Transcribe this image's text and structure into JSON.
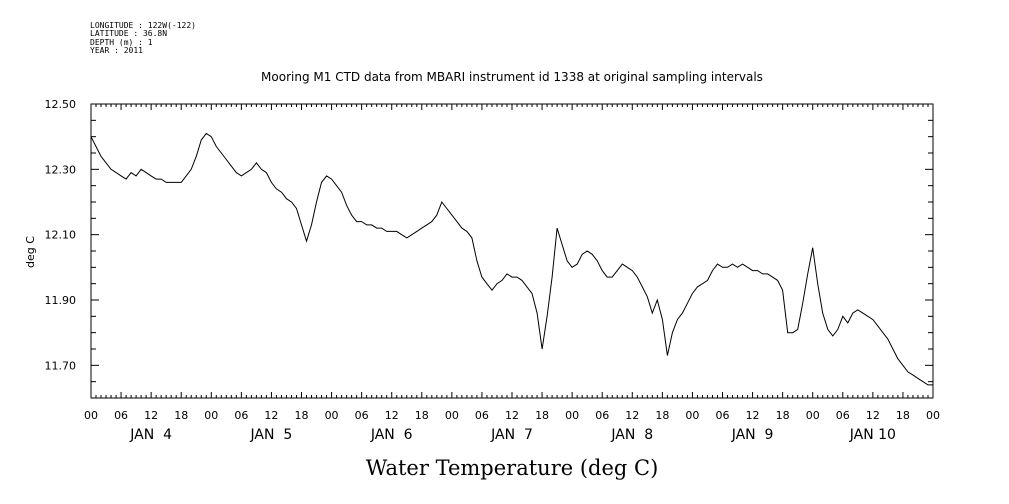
{
  "meta": {
    "longitude": "LONGITUDE : 122W(-122)",
    "latitude": "LATITUDE : 36.8N",
    "depth": "DEPTH (m) : 1",
    "year": "YEAR : 2011"
  },
  "chart_data": {
    "type": "line",
    "title": "Mooring M1 CTD data from MBARI instrument id 1338 at original sampling intervals",
    "xlabel": "Water Temperature (deg C)",
    "ylabel": "deg C",
    "ylim": [
      11.6,
      12.5
    ],
    "yticks": [
      "12.50",
      "12.30",
      "12.10",
      "11.90",
      "11.70"
    ],
    "xlim_hours": [
      0,
      168
    ],
    "xtick_labels": [
      "00",
      "06",
      "12",
      "18",
      "00",
      "06",
      "12",
      "18",
      "00",
      "06",
      "12",
      "18",
      "00",
      "06",
      "12",
      "18",
      "00",
      "06",
      "12",
      "18",
      "00",
      "06",
      "12",
      "18",
      "00",
      "06",
      "12",
      "18",
      "00"
    ],
    "day_labels": [
      "JAN  4",
      "JAN  5",
      "JAN  6",
      "JAN  7",
      "JAN  8",
      "JAN  9",
      "JAN 10"
    ],
    "grid": false,
    "series": [
      {
        "values": [
          [
            0,
            12.4
          ],
          [
            1,
            12.37
          ],
          [
            2,
            12.34
          ],
          [
            3,
            12.32
          ],
          [
            4,
            12.3
          ],
          [
            5,
            12.29
          ],
          [
            6,
            12.28
          ],
          [
            7,
            12.27
          ],
          [
            8,
            12.29
          ],
          [
            9,
            12.28
          ],
          [
            10,
            12.3
          ],
          [
            11,
            12.29
          ],
          [
            12,
            12.28
          ],
          [
            13,
            12.27
          ],
          [
            14,
            12.27
          ],
          [
            15,
            12.26
          ],
          [
            16,
            12.26
          ],
          [
            17,
            12.26
          ],
          [
            18,
            12.26
          ],
          [
            19,
            12.28
          ],
          [
            20,
            12.3
          ],
          [
            21,
            12.34
          ],
          [
            22,
            12.39
          ],
          [
            23,
            12.41
          ],
          [
            24,
            12.4
          ],
          [
            25,
            12.37
          ],
          [
            26,
            12.35
          ],
          [
            27,
            12.33
          ],
          [
            28,
            12.31
          ],
          [
            29,
            12.29
          ],
          [
            30,
            12.28
          ],
          [
            31,
            12.29
          ],
          [
            32,
            12.3
          ],
          [
            33,
            12.32
          ],
          [
            34,
            12.3
          ],
          [
            35,
            12.29
          ],
          [
            36,
            12.26
          ],
          [
            37,
            12.24
          ],
          [
            38,
            12.23
          ],
          [
            39,
            12.21
          ],
          [
            40,
            12.2
          ],
          [
            41,
            12.18
          ],
          [
            42,
            12.13
          ],
          [
            43,
            12.08
          ],
          [
            44,
            12.13
          ],
          [
            45,
            12.2
          ],
          [
            46,
            12.26
          ],
          [
            47,
            12.28
          ],
          [
            48,
            12.27
          ],
          [
            49,
            12.25
          ],
          [
            50,
            12.23
          ],
          [
            51,
            12.19
          ],
          [
            52,
            12.16
          ],
          [
            53,
            12.14
          ],
          [
            54,
            12.14
          ],
          [
            55,
            12.13
          ],
          [
            56,
            12.13
          ],
          [
            57,
            12.12
          ],
          [
            58,
            12.12
          ],
          [
            59,
            12.11
          ],
          [
            60,
            12.11
          ],
          [
            61,
            12.11
          ],
          [
            62,
            12.1
          ],
          [
            63,
            12.09
          ],
          [
            64,
            12.1
          ],
          [
            65,
            12.11
          ],
          [
            66,
            12.12
          ],
          [
            67,
            12.13
          ],
          [
            68,
            12.14
          ],
          [
            69,
            12.16
          ],
          [
            70,
            12.2
          ],
          [
            71,
            12.18
          ],
          [
            72,
            12.16
          ],
          [
            73,
            12.14
          ],
          [
            74,
            12.12
          ],
          [
            75,
            12.11
          ],
          [
            76,
            12.09
          ],
          [
            77,
            12.02
          ],
          [
            78,
            11.97
          ],
          [
            79,
            11.95
          ],
          [
            80,
            11.93
          ],
          [
            81,
            11.95
          ],
          [
            82,
            11.96
          ],
          [
            83,
            11.98
          ],
          [
            84,
            11.97
          ],
          [
            85,
            11.97
          ],
          [
            86,
            11.96
          ],
          [
            87,
            11.94
          ],
          [
            88,
            11.92
          ],
          [
            89,
            11.86
          ],
          [
            90,
            11.75
          ],
          [
            91,
            11.85
          ],
          [
            92,
            11.97
          ],
          [
            93,
            12.12
          ],
          [
            94,
            12.07
          ],
          [
            95,
            12.02
          ],
          [
            96,
            12.0
          ],
          [
            97,
            12.01
          ],
          [
            98,
            12.04
          ],
          [
            99,
            12.05
          ],
          [
            100,
            12.04
          ],
          [
            101,
            12.02
          ],
          [
            102,
            11.99
          ],
          [
            103,
            11.97
          ],
          [
            104,
            11.97
          ],
          [
            105,
            11.99
          ],
          [
            106,
            12.01
          ],
          [
            107,
            12.0
          ],
          [
            108,
            11.99
          ],
          [
            109,
            11.97
          ],
          [
            110,
            11.94
          ],
          [
            111,
            11.91
          ],
          [
            112,
            11.86
          ],
          [
            113,
            11.9
          ],
          [
            114,
            11.84
          ],
          [
            115,
            11.73
          ],
          [
            116,
            11.8
          ],
          [
            117,
            11.84
          ],
          [
            118,
            11.86
          ],
          [
            119,
            11.89
          ],
          [
            120,
            11.92
          ],
          [
            121,
            11.94
          ],
          [
            122,
            11.95
          ],
          [
            123,
            11.96
          ],
          [
            124,
            11.99
          ],
          [
            125,
            12.01
          ],
          [
            126,
            12.0
          ],
          [
            127,
            12.0
          ],
          [
            128,
            12.01
          ],
          [
            129,
            12.0
          ],
          [
            130,
            12.01
          ],
          [
            131,
            12.0
          ],
          [
            132,
            11.99
          ],
          [
            133,
            11.99
          ],
          [
            134,
            11.98
          ],
          [
            135,
            11.98
          ],
          [
            136,
            11.97
          ],
          [
            137,
            11.96
          ],
          [
            138,
            11.93
          ],
          [
            139,
            11.8
          ],
          [
            140,
            11.8
          ],
          [
            141,
            11.81
          ],
          [
            142,
            11.89
          ],
          [
            143,
            11.98
          ],
          [
            144,
            12.06
          ],
          [
            145,
            11.95
          ],
          [
            146,
            11.86
          ],
          [
            147,
            11.81
          ],
          [
            148,
            11.79
          ],
          [
            149,
            11.81
          ],
          [
            150,
            11.85
          ],
          [
            151,
            11.83
          ],
          [
            152,
            11.86
          ],
          [
            153,
            11.87
          ],
          [
            154,
            11.86
          ],
          [
            155,
            11.85
          ],
          [
            156,
            11.84
          ],
          [
            157,
            11.82
          ],
          [
            158,
            11.8
          ],
          [
            159,
            11.78
          ],
          [
            160,
            11.75
          ],
          [
            161,
            11.72
          ],
          [
            162,
            11.7
          ],
          [
            163,
            11.68
          ],
          [
            164,
            11.67
          ],
          [
            165,
            11.66
          ],
          [
            166,
            11.65
          ],
          [
            167,
            11.64
          ],
          [
            168,
            11.64
          ]
        ]
      }
    ]
  }
}
